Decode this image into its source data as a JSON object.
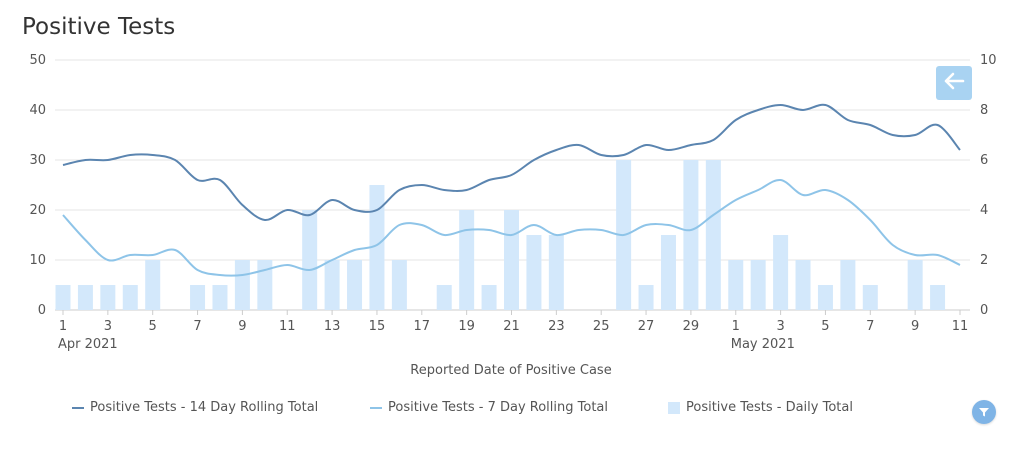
{
  "title": "Positive Tests",
  "colors": {
    "fourteen_day": "#5b85b0",
    "seven_day": "#8ec4e8",
    "daily": "#d3e8fb",
    "grid": "#e6e6e6",
    "button": "#a9d3f2"
  },
  "icons": {
    "back": "arrow-left-icon",
    "filter": "filter-icon"
  },
  "chart_data": {
    "type": "bar+line",
    "title": "Positive Tests",
    "xlabel": "Reported Date of Positive Case",
    "ylabel_left": "",
    "ylabel_right": "",
    "ylim_left": [
      0,
      50
    ],
    "ylim_right": [
      0,
      10
    ],
    "yticks_left": [
      "0",
      "10",
      "20",
      "30",
      "40",
      "50"
    ],
    "yticks_right": [
      "0",
      "2",
      "4",
      "6",
      "8",
      "10"
    ],
    "x_ticks": [
      "1",
      "3",
      "5",
      "7",
      "9",
      "11",
      "13",
      "15",
      "17",
      "19",
      "21",
      "23",
      "25",
      "27",
      "29",
      "1",
      "3",
      "5",
      "7",
      "9",
      "11"
    ],
    "month_labels": [
      {
        "text": "Apr 2021",
        "day_index": 0
      },
      {
        "text": "May 2021",
        "day_index": 30
      }
    ],
    "dates": [
      "2021-04-01",
      "2021-04-02",
      "2021-04-03",
      "2021-04-04",
      "2021-04-05",
      "2021-04-06",
      "2021-04-07",
      "2021-04-08",
      "2021-04-09",
      "2021-04-10",
      "2021-04-11",
      "2021-04-12",
      "2021-04-13",
      "2021-04-14",
      "2021-04-15",
      "2021-04-16",
      "2021-04-17",
      "2021-04-18",
      "2021-04-19",
      "2021-04-20",
      "2021-04-21",
      "2021-04-22",
      "2021-04-23",
      "2021-04-24",
      "2021-04-25",
      "2021-04-26",
      "2021-04-27",
      "2021-04-28",
      "2021-04-29",
      "2021-04-30",
      "2021-05-01",
      "2021-05-02",
      "2021-05-03",
      "2021-05-04",
      "2021-05-05",
      "2021-05-06",
      "2021-05-07",
      "2021-05-08",
      "2021-05-09",
      "2021-05-10",
      "2021-05-11"
    ],
    "legend_position": "bottom",
    "grid": true,
    "series": [
      {
        "name": "Positive Tests - 14 Day Rolling Total",
        "type": "line",
        "axis": "left",
        "values": [
          29,
          30,
          30,
          31,
          31,
          30,
          26,
          26,
          21,
          18,
          20,
          19,
          22,
          20,
          20,
          24,
          25,
          24,
          24,
          26,
          27,
          30,
          32,
          33,
          31,
          31,
          33,
          32,
          33,
          34,
          38,
          40,
          41,
          40,
          41,
          38,
          37,
          35,
          35,
          37,
          32
        ]
      },
      {
        "name": "Positive Tests - 7 Day Rolling Total",
        "type": "line",
        "axis": "left",
        "values": [
          19,
          14,
          10,
          11,
          11,
          12,
          8,
          7,
          7,
          8,
          9,
          8,
          10,
          12,
          13,
          17,
          17,
          15,
          16,
          16,
          15,
          17,
          15,
          16,
          16,
          15,
          17,
          17,
          16,
          19,
          22,
          24,
          26,
          23,
          24,
          22,
          18,
          13,
          11,
          11,
          9
        ]
      },
      {
        "name": "Positive Tests - Daily Total",
        "type": "bar",
        "axis": "right",
        "values": [
          1,
          1,
          1,
          1,
          2,
          0,
          1,
          1,
          2,
          2,
          0,
          4,
          2,
          2,
          5,
          2,
          0,
          1,
          4,
          1,
          4,
          3,
          3,
          0,
          0,
          6,
          1,
          3,
          6,
          6,
          2,
          2,
          3,
          2,
          1,
          2,
          1,
          0,
          2,
          1,
          0
        ]
      }
    ]
  }
}
